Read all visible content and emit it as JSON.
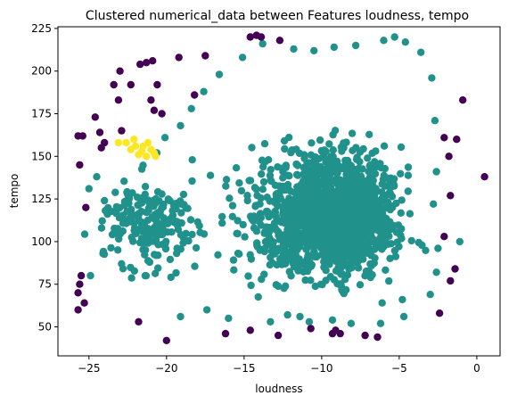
{
  "chart_data": {
    "type": "scatter",
    "title": "Clustered numerical_data between Features loudness, tempo",
    "xlabel": "loudness",
    "ylabel": "tempo",
    "xlim": [
      -27,
      1.5
    ],
    "ylim": [
      33,
      226
    ],
    "xticks": [
      -25,
      -20,
      -15,
      -10,
      -5,
      0
    ],
    "yticks": [
      50,
      75,
      100,
      125,
      150,
      175,
      200,
      225
    ],
    "grid": false,
    "legend": "none",
    "colors": {
      "cluster_0": "#440154",
      "cluster_1": "#21918c",
      "cluster_2": "#fde725"
    },
    "clusters": [
      {
        "cluster": 0,
        "color": "#440154",
        "points": [
          [
            -25.7,
            162
          ],
          [
            -25.4,
            162
          ],
          [
            -25.6,
            145
          ],
          [
            -24.6,
            173
          ],
          [
            -24.3,
            164
          ],
          [
            -24.0,
            158
          ],
          [
            -23.4,
            192
          ],
          [
            -23.0,
            200
          ],
          [
            -22.9,
            165
          ],
          [
            -23.1,
            183
          ],
          [
            -24.2,
            155
          ],
          [
            -21.7,
            204
          ],
          [
            -21.3,
            205
          ],
          [
            -20.9,
            206
          ],
          [
            -20.6,
            192
          ],
          [
            -20.3,
            175
          ],
          [
            -20.8,
            177
          ],
          [
            -21.0,
            183
          ],
          [
            -19.2,
            208
          ],
          [
            -17.5,
            209
          ],
          [
            -18.2,
            186
          ],
          [
            -14.6,
            220
          ],
          [
            -14.2,
            221
          ],
          [
            -13.9,
            220
          ],
          [
            -12.7,
            218
          ],
          [
            -25.7,
            70
          ],
          [
            -25.6,
            75
          ],
          [
            -25.7,
            60
          ],
          [
            -25.3,
            64
          ],
          [
            -25.5,
            80
          ],
          [
            -25.2,
            120
          ],
          [
            -22.3,
            192
          ],
          [
            -21.8,
            53
          ],
          [
            -20.0,
            42
          ],
          [
            -14.6,
            48
          ],
          [
            -12.8,
            45
          ],
          [
            -10.7,
            49
          ],
          [
            -9.3,
            46
          ],
          [
            -9.1,
            48
          ],
          [
            -8.8,
            46
          ],
          [
            -7.2,
            45
          ],
          [
            -6.4,
            44
          ],
          [
            -2.4,
            58
          ],
          [
            -1.7,
            77
          ],
          [
            -1.4,
            84
          ],
          [
            -2.1,
            103
          ],
          [
            -1.7,
            127
          ],
          [
            -1.8,
            150
          ],
          [
            -2.1,
            161
          ],
          [
            -1.3,
            160
          ],
          [
            -0.9,
            183
          ],
          [
            0.5,
            138
          ],
          [
            -16.2,
            46
          ]
        ]
      },
      {
        "cluster": 2,
        "color": "#fde725",
        "points": [
          [
            -23.1,
            158
          ],
          [
            -22.6,
            158
          ],
          [
            -22.3,
            154
          ],
          [
            -22.0,
            156
          ],
          [
            -21.8,
            151
          ],
          [
            -21.6,
            153
          ],
          [
            -21.3,
            150
          ],
          [
            -21.2,
            158
          ],
          [
            -21.0,
            154
          ],
          [
            -20.8,
            152
          ],
          [
            -20.7,
            150
          ],
          [
            -21.5,
            156
          ],
          [
            -22.1,
            160
          ]
        ]
      },
      {
        "cluster": 1,
        "color": "#21918c",
        "generated": true,
        "count": 1900,
        "ranges": {
          "dense_core": {
            "x": [
              -15,
              -3.5
            ],
            "y": [
              65,
              170
            ]
          },
          "body": {
            "x": [
              -19,
              -2.5
            ],
            "y": [
              55,
              215
            ]
          },
          "left_tail": {
            "x": [
              -26,
              -19
            ],
            "y": [
              55,
              185
            ]
          }
        }
      }
    ]
  }
}
